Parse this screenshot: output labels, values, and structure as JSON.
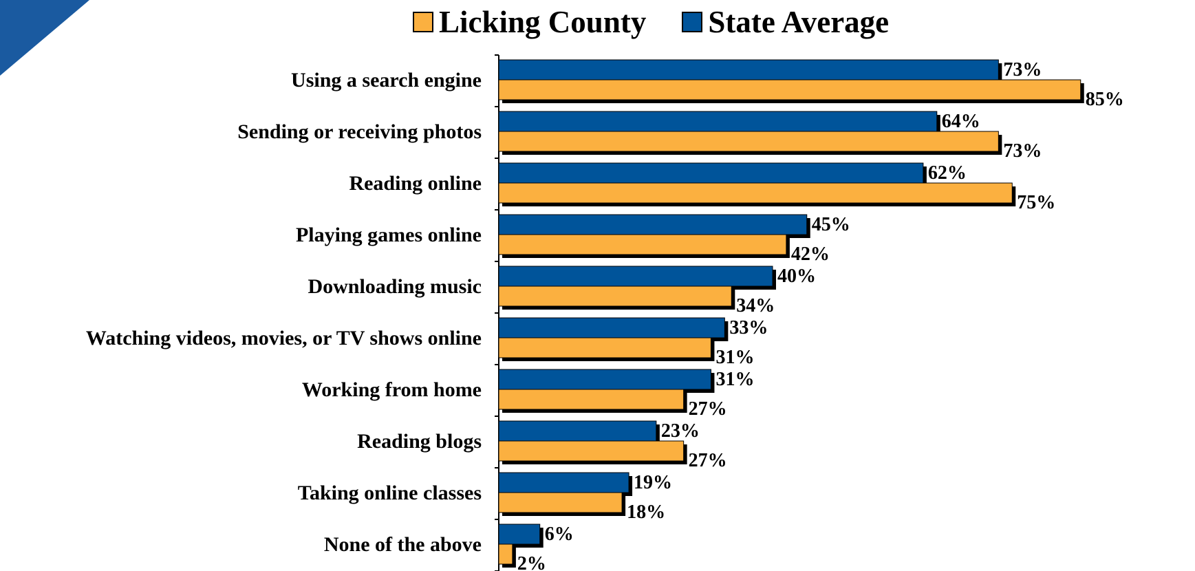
{
  "colors": {
    "county": "#fbb040",
    "state": "#00549a",
    "corner": "#1a5aa0"
  },
  "legend": {
    "county_label": "Licking County",
    "state_label": "State Average"
  },
  "chart_data": {
    "type": "bar",
    "orientation": "horizontal",
    "categories": [
      "Using a search engine",
      "Sending or receiving photos",
      "Reading online",
      "Playing games online",
      "Downloading music",
      "Watching videos, movies, or TV shows online",
      "Working from home",
      "Reading blogs",
      "Taking online classes",
      "None of the above"
    ],
    "series": [
      {
        "name": "State Average",
        "values": [
          73,
          64,
          62,
          45,
          40,
          33,
          31,
          23,
          19,
          6
        ],
        "labels": [
          "73%",
          "64%",
          "62%",
          "45%",
          "40%",
          "33%",
          "31%",
          "23%",
          "19%",
          "6%"
        ]
      },
      {
        "name": "Licking County",
        "values": [
          85,
          73,
          75,
          42,
          34,
          31,
          27,
          27,
          18,
          2
        ],
        "labels": [
          "85%",
          "73%",
          "75%",
          "42%",
          "34%",
          "31%",
          "27%",
          "27%",
          "18%",
          "2%"
        ]
      }
    ],
    "xlim": [
      0,
      100
    ],
    "grid": false,
    "legend_position": "top"
  }
}
